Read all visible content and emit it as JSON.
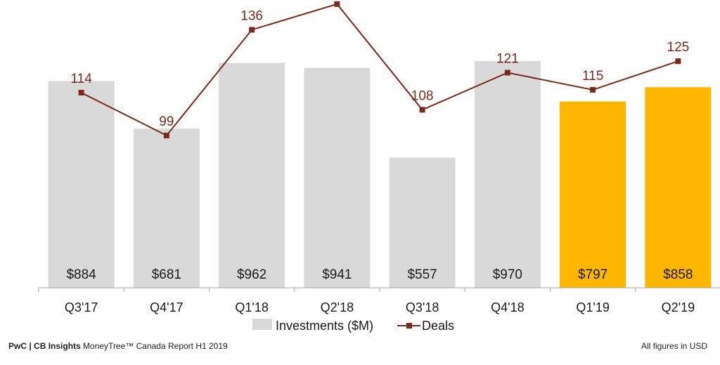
{
  "chart_data": {
    "type": "bar",
    "categories": [
      "Q3'17",
      "Q4'17",
      "Q1'18",
      "Q2'18",
      "Q3'18",
      "Q4'18",
      "Q1'19",
      "Q2'19"
    ],
    "series": [
      {
        "name": "Investments ($M)",
        "type": "bar",
        "values": [
          884,
          681,
          962,
          941,
          557,
          970,
          797,
          858
        ],
        "labels": [
          "$884",
          "$681",
          "$962",
          "$941",
          "$557",
          "$970",
          "$797",
          "$858"
        ],
        "colors": [
          "#d9d9d9",
          "#d9d9d9",
          "#d9d9d9",
          "#d9d9d9",
          "#d9d9d9",
          "#d9d9d9",
          "#ffb600",
          "#ffb600"
        ]
      },
      {
        "name": "Deals",
        "type": "line",
        "values": [
          114,
          99,
          136,
          145,
          108,
          121,
          115,
          125
        ],
        "color": "#7a2a1b"
      }
    ],
    "ylim_bars": [
      0,
      1000
    ],
    "ylim_deals": [
      50,
      150
    ],
    "legend_position": "bottom",
    "grid": false
  },
  "footer": {
    "source_brand": "PwC | CB Insights",
    "source_rest": " MoneyTree™ Canada Report H1 2019",
    "note": "All figures in USD"
  }
}
